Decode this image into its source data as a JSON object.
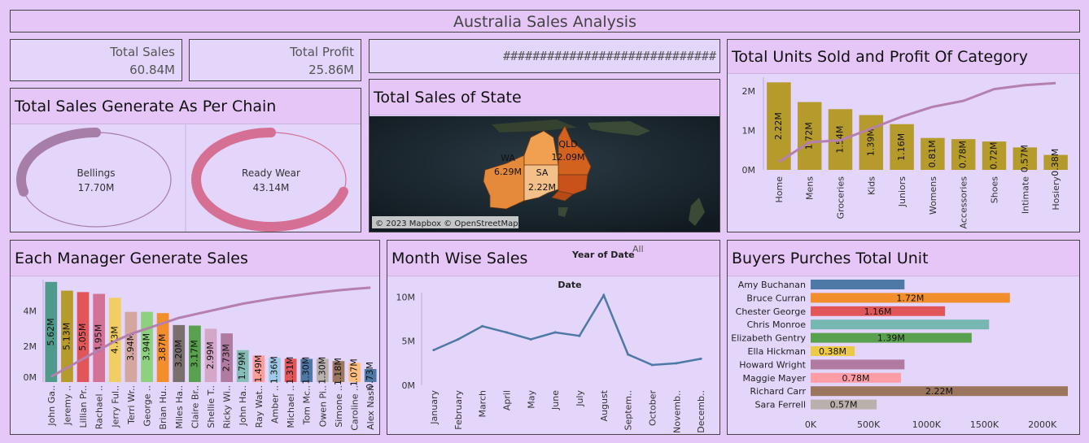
{
  "dashboard_title": "Australia Sales Analysis",
  "kpis": {
    "total_sales_label": "Total Sales",
    "total_sales_value": "60.84M",
    "total_profit_label": "Total Profit",
    "total_profit_value": "25.86M",
    "hash_text": "#############################"
  },
  "colors": {
    "background": "#e5c8f7",
    "panel": "#e3d6fa",
    "bar_gold": "#b59a2c",
    "trend_line": "#b57fae",
    "line_series": "#4e79a7"
  },
  "chain": {
    "title": "Total Sales Generate As Per Chain",
    "rings": [
      {
        "label": "Bellings",
        "value_text": "17.70M",
        "value": 17.7,
        "color": "#a77ea8"
      },
      {
        "label": "Ready Wear",
        "value_text": "43.14M",
        "value": 43.14,
        "color": "#d57094"
      }
    ]
  },
  "map": {
    "title": "Total Sales of State",
    "credit": "© 2023 Mapbox © OpenStreetMap",
    "states": [
      {
        "code": "WA",
        "value": "6.29M"
      },
      {
        "code": "QLD",
        "value": "12.09M"
      },
      {
        "code": "SA",
        "value": "2.22M"
      }
    ]
  },
  "chart_data": [
    {
      "id": "category",
      "type": "bar",
      "title": "Total Units Sold and Profit Of Category",
      "categories": [
        "Home",
        "Mens",
        "Groceries",
        "Kids",
        "Juniors",
        "Womens",
        "Accessories",
        "Shoes",
        "Intimate",
        "Hosiery"
      ],
      "values": [
        2.22,
        1.72,
        1.54,
        1.39,
        1.16,
        0.81,
        0.78,
        0.72,
        0.57,
        0.38
      ],
      "labels": [
        "2.22M",
        "1.72M",
        "1.54M",
        "1.39M",
        "1.16M",
        "0.81M",
        "0.78M",
        "0.72M",
        "0.57M",
        "0.38M"
      ],
      "trend": [
        0.2,
        0.7,
        0.75,
        1.05,
        1.35,
        1.6,
        1.75,
        2.05,
        2.15,
        2.2
      ],
      "yticks": [
        "0M",
        "1M",
        "2M"
      ],
      "ylim": [
        0,
        2.35
      ]
    },
    {
      "id": "manager",
      "type": "bar",
      "title": "Each Manager Generate Sales",
      "categories": [
        "John Ga..",
        "Jeremy ..",
        "Lillian Pr..",
        "Rachael ..",
        "Jerry Ful..",
        "Terri Wr..",
        "George ..",
        "Brian Hu..",
        "Miles Ha..",
        "Claire Br..",
        "Shellie T..",
        "Ricky Wi..",
        "John Ha..",
        "Ray Wat..",
        "Amber ..",
        "Michael ..",
        "Tom Mc..",
        "Owen Pi..",
        "Simone ..",
        "Caroline ..",
        "Alex Nash"
      ],
      "values": [
        5.62,
        5.13,
        5.05,
        4.95,
        4.73,
        3.94,
        3.94,
        3.87,
        3.2,
        3.17,
        2.99,
        2.73,
        1.79,
        1.49,
        1.36,
        1.31,
        1.3,
        1.3,
        1.18,
        1.07,
        0.73
      ],
      "labels": [
        "5.62M",
        "5.13M",
        "5.05M",
        "4.95M",
        "4.73M",
        "3.94M",
        "3.94M",
        "3.87M",
        "3.20M",
        "3.17M",
        "2.99M",
        "2.73M",
        "1.79M",
        "1.49M",
        "1.36M",
        "1.31M",
        "1.30M",
        "1.30M",
        "1.18M",
        "1.07M",
        "0.73M"
      ],
      "colors": [
        "#4f9a8b",
        "#b59a2c",
        "#e15759",
        "#d37295",
        "#f1ce63",
        "#d4a6a0",
        "#8cd17d",
        "#f28e2b",
        "#79706e",
        "#59a14f",
        "#d4a6c8",
        "#b07aa1",
        "#86bcb6",
        "#ff9d9a",
        "#a0cbe8",
        "#e15759",
        "#4e79a7",
        "#bab0ac",
        "#9d7660",
        "#ffbe7d",
        "#4e79a7"
      ],
      "trend": [
        0.3,
        0.8,
        1.3,
        1.8,
        2.3,
        2.7,
        3.0,
        3.3,
        3.6,
        3.8,
        4.0,
        4.2,
        4.4,
        4.55,
        4.7,
        4.82,
        4.94,
        5.05,
        5.15,
        5.23,
        5.3
      ],
      "yticks": [
        "0M",
        "2M",
        "4M"
      ],
      "ylim": [
        0,
        5.75
      ]
    },
    {
      "id": "month",
      "type": "line",
      "title": "Month Wise Sales",
      "filter_label": "Year of Date",
      "filter_value": "All",
      "xlabel": "Date",
      "x": [
        "January",
        "February",
        "March",
        "April",
        "May",
        "June",
        "July",
        "August",
        "Septem..",
        "October",
        "Novemb..",
        "Decemb.."
      ],
      "values": [
        4.0,
        5.2,
        6.7,
        6.0,
        5.2,
        6.0,
        5.6,
        10.2,
        3.5,
        2.3,
        2.5,
        3.0
      ],
      "yticks": [
        "0M",
        "5M",
        "10M"
      ],
      "ylim": [
        0,
        10.5
      ]
    },
    {
      "id": "buyers",
      "type": "bar",
      "orientation": "horizontal",
      "title": "Buyers Purches Total Unit",
      "categories": [
        "Amy Buchanan",
        "Bruce Curran",
        "Chester George",
        "Chris Monroe",
        "Elizabeth Gentry",
        "Ella Hickman",
        "Howard Wright",
        "Maggie Mayer",
        "Richard Carr",
        "Sara Ferrell"
      ],
      "values": [
        810000,
        1720000,
        1160000,
        1540000,
        1390000,
        380000,
        810000,
        780000,
        2220000,
        570000
      ],
      "labels": [
        "",
        "1.72M",
        "1.16M",
        "",
        "1.39M",
        "0.38M",
        "",
        "0.78M",
        "2.22M",
        "0.57M"
      ],
      "colors": [
        "#4e79a7",
        "#f28e2b",
        "#e15759",
        "#76b7b2",
        "#59a14f",
        "#edc948",
        "#b07aa1",
        "#ff9da7",
        "#9c755f",
        "#bab0ac"
      ],
      "xticks": [
        "0K",
        "500K",
        "1000K",
        "1500K",
        "2000K"
      ],
      "xtick_values": [
        0,
        500000,
        1000000,
        1500000,
        2000000
      ],
      "xlim": [
        0,
        2220000
      ]
    }
  ]
}
